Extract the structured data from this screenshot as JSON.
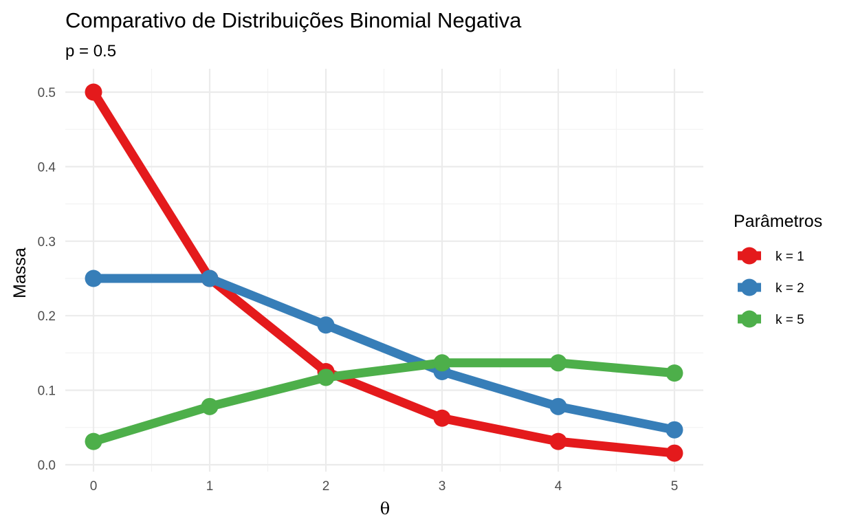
{
  "chart_data": {
    "type": "line",
    "title": "Comparativo de Distribuições Binomial Negativa",
    "subtitle": "p = 0.5",
    "xlabel": "θ",
    "ylabel": "Massa",
    "x": [
      0,
      1,
      2,
      3,
      4,
      5
    ],
    "xlim": [
      0,
      5
    ],
    "ylim": [
      0,
      0.5
    ],
    "x_ticks": [
      "0",
      "1",
      "2",
      "3",
      "4",
      "5"
    ],
    "y_ticks": [
      "0.0",
      "0.1",
      "0.2",
      "0.3",
      "0.4",
      "0.5"
    ],
    "grid": true,
    "legend": {
      "title": "Parâmetros",
      "position": "right"
    },
    "series": [
      {
        "name": "k = 1",
        "color": "#e41a1c",
        "values": [
          0.5,
          0.25,
          0.125,
          0.0625,
          0.03125,
          0.015625
        ]
      },
      {
        "name": "k = 2",
        "color": "#377eb8",
        "values": [
          0.25,
          0.25,
          0.1875,
          0.125,
          0.078125,
          0.046875
        ]
      },
      {
        "name": "k = 5",
        "color": "#4daf4a",
        "values": [
          0.03125,
          0.078125,
          0.1171875,
          0.13671875,
          0.13671875,
          0.123046875
        ]
      }
    ]
  }
}
